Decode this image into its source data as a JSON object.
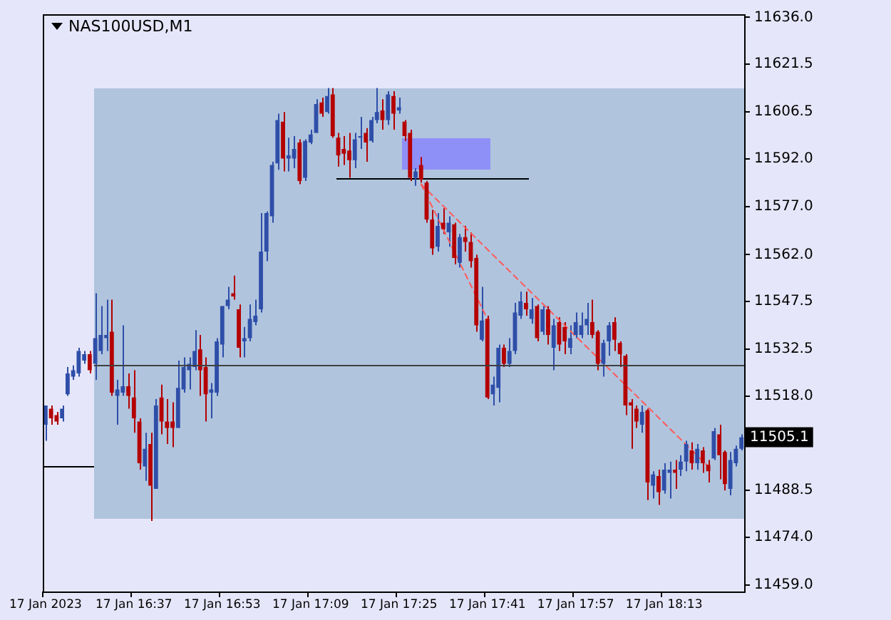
{
  "chart_data": {
    "type": "candlestick",
    "title": "NAS100USD,M1",
    "categories": [
      "17 Jan 2023",
      null,
      null,
      null,
      null,
      null,
      null,
      null,
      null,
      null,
      null,
      null,
      null,
      null,
      null,
      null,
      "17 Jan 16:37",
      null,
      null,
      null,
      null,
      null,
      null,
      null,
      null,
      null,
      null,
      null,
      null,
      null,
      null,
      null,
      "17 Jan 16:53",
      null,
      null,
      null,
      null,
      null,
      null,
      null,
      null,
      null,
      null,
      null,
      null,
      null,
      null,
      null,
      "17 Jan 17:09",
      null,
      null,
      null,
      null,
      null,
      null,
      null,
      null,
      null,
      null,
      null,
      null,
      null,
      null,
      null,
      "17 Jan 17:25",
      null,
      null,
      null,
      null,
      null,
      null,
      null,
      null,
      null,
      null,
      null,
      null,
      null,
      null,
      null,
      "17 Jan 17:41",
      null,
      null,
      null,
      null,
      null,
      null,
      null,
      null,
      null,
      null,
      null,
      null,
      null,
      null,
      null,
      "17 Jan 17:57",
      null,
      null,
      null,
      null,
      null,
      null,
      null,
      null,
      null,
      null,
      null,
      null,
      null,
      null,
      null,
      "17 Jan 18:13",
      null,
      null,
      null,
      null,
      null,
      null,
      null,
      null,
      null,
      null,
      null,
      null,
      null,
      null
    ],
    "ohlc": [
      [
        11509,
        11515,
        11504,
        11515
      ],
      [
        11514,
        11515,
        11509,
        11511
      ],
      [
        11512,
        11513,
        11509,
        11510
      ],
      [
        11511,
        11515,
        11510,
        11514
      ],
      [
        11518.5,
        11527,
        11518,
        11525
      ],
      [
        11524,
        11527.5,
        11523,
        11526
      ],
      [
        11525,
        11533,
        11524,
        11532
      ],
      [
        11529,
        11532,
        11528,
        11531
      ],
      [
        11531,
        11532,
        11525,
        11526
      ],
      [
        11528,
        11550,
        11523,
        11536
      ],
      [
        11532,
        11546,
        11531,
        11537
      ],
      [
        11536,
        11548,
        11532,
        11537
      ],
      [
        11538,
        11548,
        11518,
        11519
      ],
      [
        11518,
        11523,
        11509,
        11520
      ],
      [
        11519,
        11540,
        11518,
        11521
      ],
      [
        11521,
        11525,
        11514,
        11518
      ],
      [
        11517.5,
        11526,
        11506.5,
        11511
      ],
      [
        11510,
        11511,
        11495,
        11497
      ],
      [
        11496,
        11506.5,
        11491.5,
        11501.5
      ],
      [
        11503,
        11506.5,
        11479,
        11490
      ],
      [
        11489,
        11517,
        11489,
        11515
      ],
      [
        11517.5,
        11521.5,
        11506,
        11510
      ],
      [
        11510,
        11517,
        11503,
        11508
      ],
      [
        11510,
        11516,
        11502,
        11508
      ],
      [
        11508,
        11529,
        11508,
        11520.5
      ],
      [
        11520,
        11530,
        11519,
        11527
      ],
      [
        11526,
        11530,
        11520,
        11528
      ],
      [
        11527,
        11538.5,
        11526,
        11532
      ],
      [
        11532.5,
        11537,
        11518,
        11526
      ],
      [
        11527,
        11530,
        11510,
        11518.5
      ],
      [
        11519,
        11522,
        11511,
        11520
      ],
      [
        11519,
        11536,
        11518,
        11535
      ],
      [
        11534,
        11546,
        11530,
        11546
      ],
      [
        11546,
        11552,
        11545,
        11548
      ],
      [
        11550,
        11555.5,
        11548,
        11549
      ],
      [
        11545,
        11546.5,
        11530,
        11533
      ],
      [
        11535,
        11539.5,
        11530,
        11536
      ],
      [
        11536,
        11546.5,
        11535,
        11542
      ],
      [
        11541,
        11548,
        11540,
        11543
      ],
      [
        11545,
        11575,
        11544,
        11563
      ],
      [
        11563,
        11575.5,
        11560,
        11575
      ],
      [
        11574,
        11591,
        11572,
        11590
      ],
      [
        11590.5,
        11606,
        11588.5,
        11604
      ],
      [
        11603.5,
        11606.5,
        11588,
        11592
      ],
      [
        11592,
        11598.5,
        11588,
        11593
      ],
      [
        11592,
        11599,
        11589,
        11595
      ],
      [
        11597,
        11598,
        11584,
        11585
      ],
      [
        11586,
        11598,
        11585,
        11597.5
      ],
      [
        11597,
        11601,
        11596.5,
        11599.5
      ],
      [
        11600,
        11610.5,
        11600,
        11609
      ],
      [
        11609.5,
        11611,
        11605,
        11606
      ],
      [
        11606.5,
        11614,
        11606,
        11611.5
      ],
      [
        11612,
        11614,
        11598.5,
        11599
      ],
      [
        11598.5,
        11600,
        11589.5,
        11593
      ],
      [
        11595,
        11599,
        11590,
        11593.5
      ],
      [
        11594.5,
        11600,
        11586,
        11591.5
      ],
      [
        11591.5,
        11600,
        11589,
        11598
      ],
      [
        11598.5,
        11605,
        11595,
        11599
      ],
      [
        11600,
        11601.5,
        11591,
        11597
      ],
      [
        11597.5,
        11605,
        11597,
        11604
      ],
      [
        11604,
        11614,
        11603,
        11606.5
      ],
      [
        11607,
        11610.5,
        11601,
        11604
      ],
      [
        11604,
        11613,
        11602.5,
        11612
      ],
      [
        11611.5,
        11613,
        11601,
        11606
      ],
      [
        11607,
        11611,
        11606,
        11608
      ],
      [
        11603.5,
        11604,
        11597.5,
        11599
      ],
      [
        11600,
        11601,
        11585,
        11586
      ],
      [
        11586,
        11589,
        11583.5,
        11588
      ],
      [
        11590,
        11592.5,
        11584.5,
        11585.5
      ],
      [
        11584.5,
        11585,
        11572,
        11573
      ],
      [
        11573,
        11576,
        11562,
        11564
      ],
      [
        11564.5,
        11575,
        11563,
        11571
      ],
      [
        11572,
        11576.5,
        11568.5,
        11570
      ],
      [
        11569,
        11574,
        11564.5,
        11572
      ],
      [
        11571.5,
        11572,
        11559,
        11561
      ],
      [
        11559.5,
        11568.5,
        11558,
        11567.5
      ],
      [
        11567.5,
        11571,
        11563,
        11566
      ],
      [
        11566,
        11569,
        11558,
        11560
      ],
      [
        11561,
        11562,
        11538,
        11540
      ],
      [
        11535.5,
        11552,
        11535,
        11541.5
      ],
      [
        11542,
        11543,
        11517,
        11517.5
      ],
      [
        11518.5,
        11524,
        11515,
        11521.5
      ],
      [
        11520.5,
        11534,
        11516,
        11533
      ],
      [
        11533,
        11534,
        11527,
        11528
      ],
      [
        11528,
        11536,
        11527,
        11532
      ],
      [
        11532,
        11547,
        11531,
        11544
      ],
      [
        11543,
        11550.5,
        11542,
        11547.5
      ],
      [
        11547,
        11550.5,
        11543,
        11545
      ],
      [
        11542,
        11548.5,
        11540.5,
        11545
      ],
      [
        11546,
        11546.5,
        11535,
        11536
      ],
      [
        11538,
        11546,
        11537,
        11545
      ],
      [
        11545,
        11546,
        11534,
        11537
      ],
      [
        11533,
        11542,
        11526,
        11540
      ],
      [
        11541,
        11542.5,
        11532,
        11534
      ],
      [
        11539.5,
        11541,
        11531,
        11535
      ],
      [
        11533,
        11540,
        11531,
        11536
      ],
      [
        11537,
        11544,
        11536,
        11541
      ],
      [
        11537,
        11544,
        11536,
        11540
      ],
      [
        11540,
        11547,
        11537,
        11542
      ],
      [
        11541,
        11548,
        11536,
        11537
      ],
      [
        11538,
        11538.5,
        11526,
        11528
      ],
      [
        11528,
        11535.5,
        11524,
        11534.5
      ],
      [
        11535,
        11541,
        11530.5,
        11540
      ],
      [
        11541,
        11542.5,
        11532,
        11535.5
      ],
      [
        11534.5,
        11535,
        11527,
        11531
      ],
      [
        11530.5,
        11531,
        11512,
        11515
      ],
      [
        11516,
        11517,
        11501.5,
        11515
      ],
      [
        11514,
        11515,
        11508,
        11510
      ],
      [
        11509,
        11515,
        11506.5,
        11513
      ],
      [
        11513.5,
        11514,
        11485.5,
        11491
      ],
      [
        11490,
        11494.5,
        11486,
        11493.5
      ],
      [
        11493,
        11495,
        11484,
        11488
      ],
      [
        11488.5,
        11497,
        11487.5,
        11495
      ],
      [
        11494,
        11497.5,
        11486,
        11495
      ],
      [
        11495,
        11498,
        11489,
        11494
      ],
      [
        11495,
        11499.5,
        11493,
        11497.5
      ],
      [
        11497.5,
        11504,
        11494.5,
        11503
      ],
      [
        11501,
        11503.5,
        11495,
        11497
      ],
      [
        11497,
        11503,
        11495,
        11501.5
      ],
      [
        11501,
        11502,
        11494,
        11497
      ],
      [
        11496.5,
        11498,
        11491,
        11494.5
      ],
      [
        11498.5,
        11508,
        11498,
        11507
      ],
      [
        11506,
        11509,
        11492,
        11499.5
      ],
      [
        11500.5,
        11501,
        11488.5,
        11490.5
      ],
      [
        11489,
        11500.5,
        11487,
        11498
      ],
      [
        11497,
        11502.5,
        11496,
        11501.5
      ],
      [
        11501.5,
        11506,
        11501,
        11505.1
      ]
    ],
    "colors": [
      "#2e4ea8",
      "#b40000",
      "#b40000",
      "#2e4ea8",
      "#2e4ea8",
      "#2e4ea8",
      "#2e4ea8",
      "#2e4ea8",
      "#b40000",
      "#2e4ea8",
      "#2e4ea8",
      "#2e4ea8",
      "#b40000",
      "#2e4ea8",
      "#2e4ea8",
      "#b40000",
      "#b40000",
      "#b40000",
      "#2e4ea8",
      "#b40000",
      "#2e4ea8",
      "#b40000",
      "#b40000",
      "#b40000",
      "#2e4ea8",
      "#2e4ea8",
      "#2e4ea8",
      "#2e4ea8",
      "#b40000",
      "#b40000",
      "#2e4ea8",
      "#2e4ea8",
      "#2e4ea8",
      "#2e4ea8",
      "#b40000",
      "#b40000",
      "#2e4ea8",
      "#2e4ea8",
      "#2e4ea8",
      "#2e4ea8",
      "#2e4ea8",
      "#2e4ea8",
      "#2e4ea8",
      "#b40000",
      "#2e4ea8",
      "#2e4ea8",
      "#b40000",
      "#2e4ea8",
      "#2e4ea8",
      "#2e4ea8",
      "#b40000",
      "#2e4ea8",
      "#b40000",
      "#b40000",
      "#b40000",
      "#b40000",
      "#2e4ea8",
      "#2e4ea8",
      "#b40000",
      "#2e4ea8",
      "#2e4ea8",
      "#b40000",
      "#2e4ea8",
      "#b40000",
      "#2e4ea8",
      "#b40000",
      "#b40000",
      "#2e4ea8",
      "#b40000",
      "#b40000",
      "#b40000",
      "#2e4ea8",
      "#b40000",
      "#2e4ea8",
      "#b40000",
      "#2e4ea8",
      "#b40000",
      "#b40000",
      "#b40000",
      "#2e4ea8",
      "#b40000",
      "#2e4ea8",
      "#2e4ea8",
      "#b40000",
      "#2e4ea8",
      "#2e4ea8",
      "#2e4ea8",
      "#b40000",
      "#2e4ea8",
      "#b40000",
      "#2e4ea8",
      "#b40000",
      "#2e4ea8",
      "#b40000",
      "#b40000",
      "#2e4ea8",
      "#2e4ea8",
      "#2e4ea8",
      "#2e4ea8",
      "#b40000",
      "#b40000",
      "#2e4ea8",
      "#2e4ea8",
      "#b40000",
      "#b40000",
      "#b40000",
      "#b40000",
      "#b40000",
      "#2e4ea8",
      "#b40000",
      "#2e4ea8",
      "#b40000",
      "#2e4ea8",
      "#2e4ea8",
      "#b40000",
      "#2e4ea8",
      "#2e4ea8",
      "#b40000",
      "#2e4ea8",
      "#b40000",
      "#b40000",
      "#2e4ea8",
      "#b40000",
      "#b40000",
      "#2e4ea8",
      "#2e4ea8",
      "#2e4ea8"
    ],
    "series": [
      {
        "type": "line",
        "color": "#ff5a5a",
        "line_style": "dashed",
        "values": [
          null,
          null,
          null,
          null,
          null,
          null,
          null,
          null,
          null,
          null,
          null,
          null,
          null,
          null,
          null,
          null,
          null,
          null,
          null,
          null,
          null,
          null,
          null,
          null,
          null,
          null,
          null,
          null,
          null,
          null,
          null,
          null,
          null,
          null,
          null,
          null,
          null,
          null,
          null,
          null,
          null,
          null,
          null,
          null,
          null,
          null,
          null,
          null,
          null,
          null,
          null,
          null,
          null,
          null,
          null,
          null,
          null,
          null,
          null,
          null,
          null,
          null,
          null,
          null,
          null,
          null,
          null,
          null,
          11584,
          null,
          null,
          null,
          null,
          null,
          null,
          null,
          null,
          null,
          null,
          null,
          null,
          null,
          null,
          null,
          null,
          null,
          null,
          null,
          null,
          null,
          null,
          null,
          null,
          null,
          null,
          null,
          null,
          null,
          null,
          null,
          null,
          null,
          null,
          null,
          null,
          null,
          null,
          null,
          null,
          null,
          null,
          null,
          null,
          null,
          null,
          null,
          null,
          null,
          null,
          null,
          11496,
          null,
          null,
          null,
          null,
          null,
          null
        ]
      },
      {
        "type": "line",
        "color": "#ff5a5a",
        "line_style": "dashed",
        "values": [
          null,
          null,
          null,
          null,
          null,
          null,
          null,
          null,
          null,
          null,
          null,
          null,
          null,
          null,
          null,
          null,
          null,
          null,
          null,
          null,
          null,
          null,
          null,
          null,
          null,
          null,
          null,
          null,
          null,
          null,
          null,
          null,
          null,
          null,
          null,
          null,
          null,
          null,
          null,
          null,
          null,
          null,
          null,
          null,
          null,
          null,
          null,
          null,
          null,
          null,
          null,
          null,
          null,
          null,
          null,
          null,
          null,
          null,
          null,
          null,
          null,
          null,
          null,
          null,
          null,
          null,
          null,
          null,
          11584,
          null,
          null,
          null,
          null,
          null,
          null,
          null,
          null,
          null,
          null,
          null,
          11542,
          null,
          null,
          null,
          null,
          null,
          null,
          null,
          null,
          null,
          null,
          null,
          null,
          null,
          null,
          null,
          null,
          null,
          null,
          null,
          null,
          null,
          null,
          null,
          null,
          null,
          null,
          null,
          null,
          null,
          null,
          null,
          null,
          null,
          null,
          null,
          null,
          null,
          null,
          null,
          null,
          null,
          null,
          null,
          null,
          null,
          null
        ]
      }
    ],
    "ylim": [
      11457,
      11637
    ],
    "yticks": [
      {
        "value": 11636,
        "label": "11636.0"
      },
      {
        "value": 11621.5,
        "label": "11621.5"
      },
      {
        "value": 11606.5,
        "label": "11606.5"
      },
      {
        "value": 11592,
        "label": "11592.0"
      },
      {
        "value": 11577,
        "label": "11577.0"
      },
      {
        "value": 11562,
        "label": "11562.0"
      },
      {
        "value": 11547.5,
        "label": "11547.5"
      },
      {
        "value": 11532.5,
        "label": "11532.5"
      },
      {
        "value": 11518,
        "label": "11518.0"
      },
      {
        "value": 11488.5,
        "label": "11488.5"
      },
      {
        "value": 11474,
        "label": "11474.0"
      },
      {
        "value": 11459,
        "label": "11459.0"
      }
    ],
    "ref_lines": [
      {
        "axis": "y",
        "value": 11527.5,
        "color": "#404040"
      }
    ],
    "annotations": [
      "11505.1"
    ]
  }
}
